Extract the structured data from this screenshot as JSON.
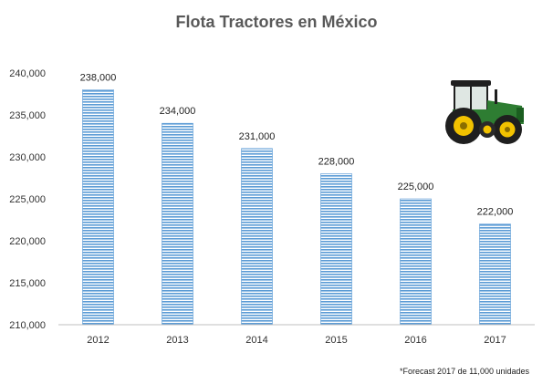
{
  "chart_data": {
    "type": "bar",
    "title": "Flota Tractores en México",
    "categories": [
      "2012",
      "2013",
      "2014",
      "2015",
      "2016",
      "2017"
    ],
    "values": [
      238000,
      234000,
      231000,
      228000,
      225000,
      222000
    ],
    "data_labels": [
      "238,000",
      "234,000",
      "231,000",
      "228,000",
      "225,000",
      "222,000"
    ],
    "ylim": [
      210000,
      240000
    ],
    "yticks": [
      210000,
      215000,
      220000,
      225000,
      230000,
      235000,
      240000
    ],
    "ytick_labels": [
      "210,000",
      "215,000",
      "220,000",
      "225,000",
      "230,000",
      "235,000",
      "240,000"
    ],
    "xlabel": "",
    "ylabel": "",
    "grid": false,
    "legend": "none",
    "bar_color": "#5b9bd5",
    "bar_pattern": "horizontal stripes",
    "footnote": "*Forecast 2017 de 11,000 unidades"
  },
  "image": {
    "icon": "tractor-icon",
    "description_colors": {
      "body": "#2e7d32",
      "wheels": "#f2c200"
    }
  }
}
